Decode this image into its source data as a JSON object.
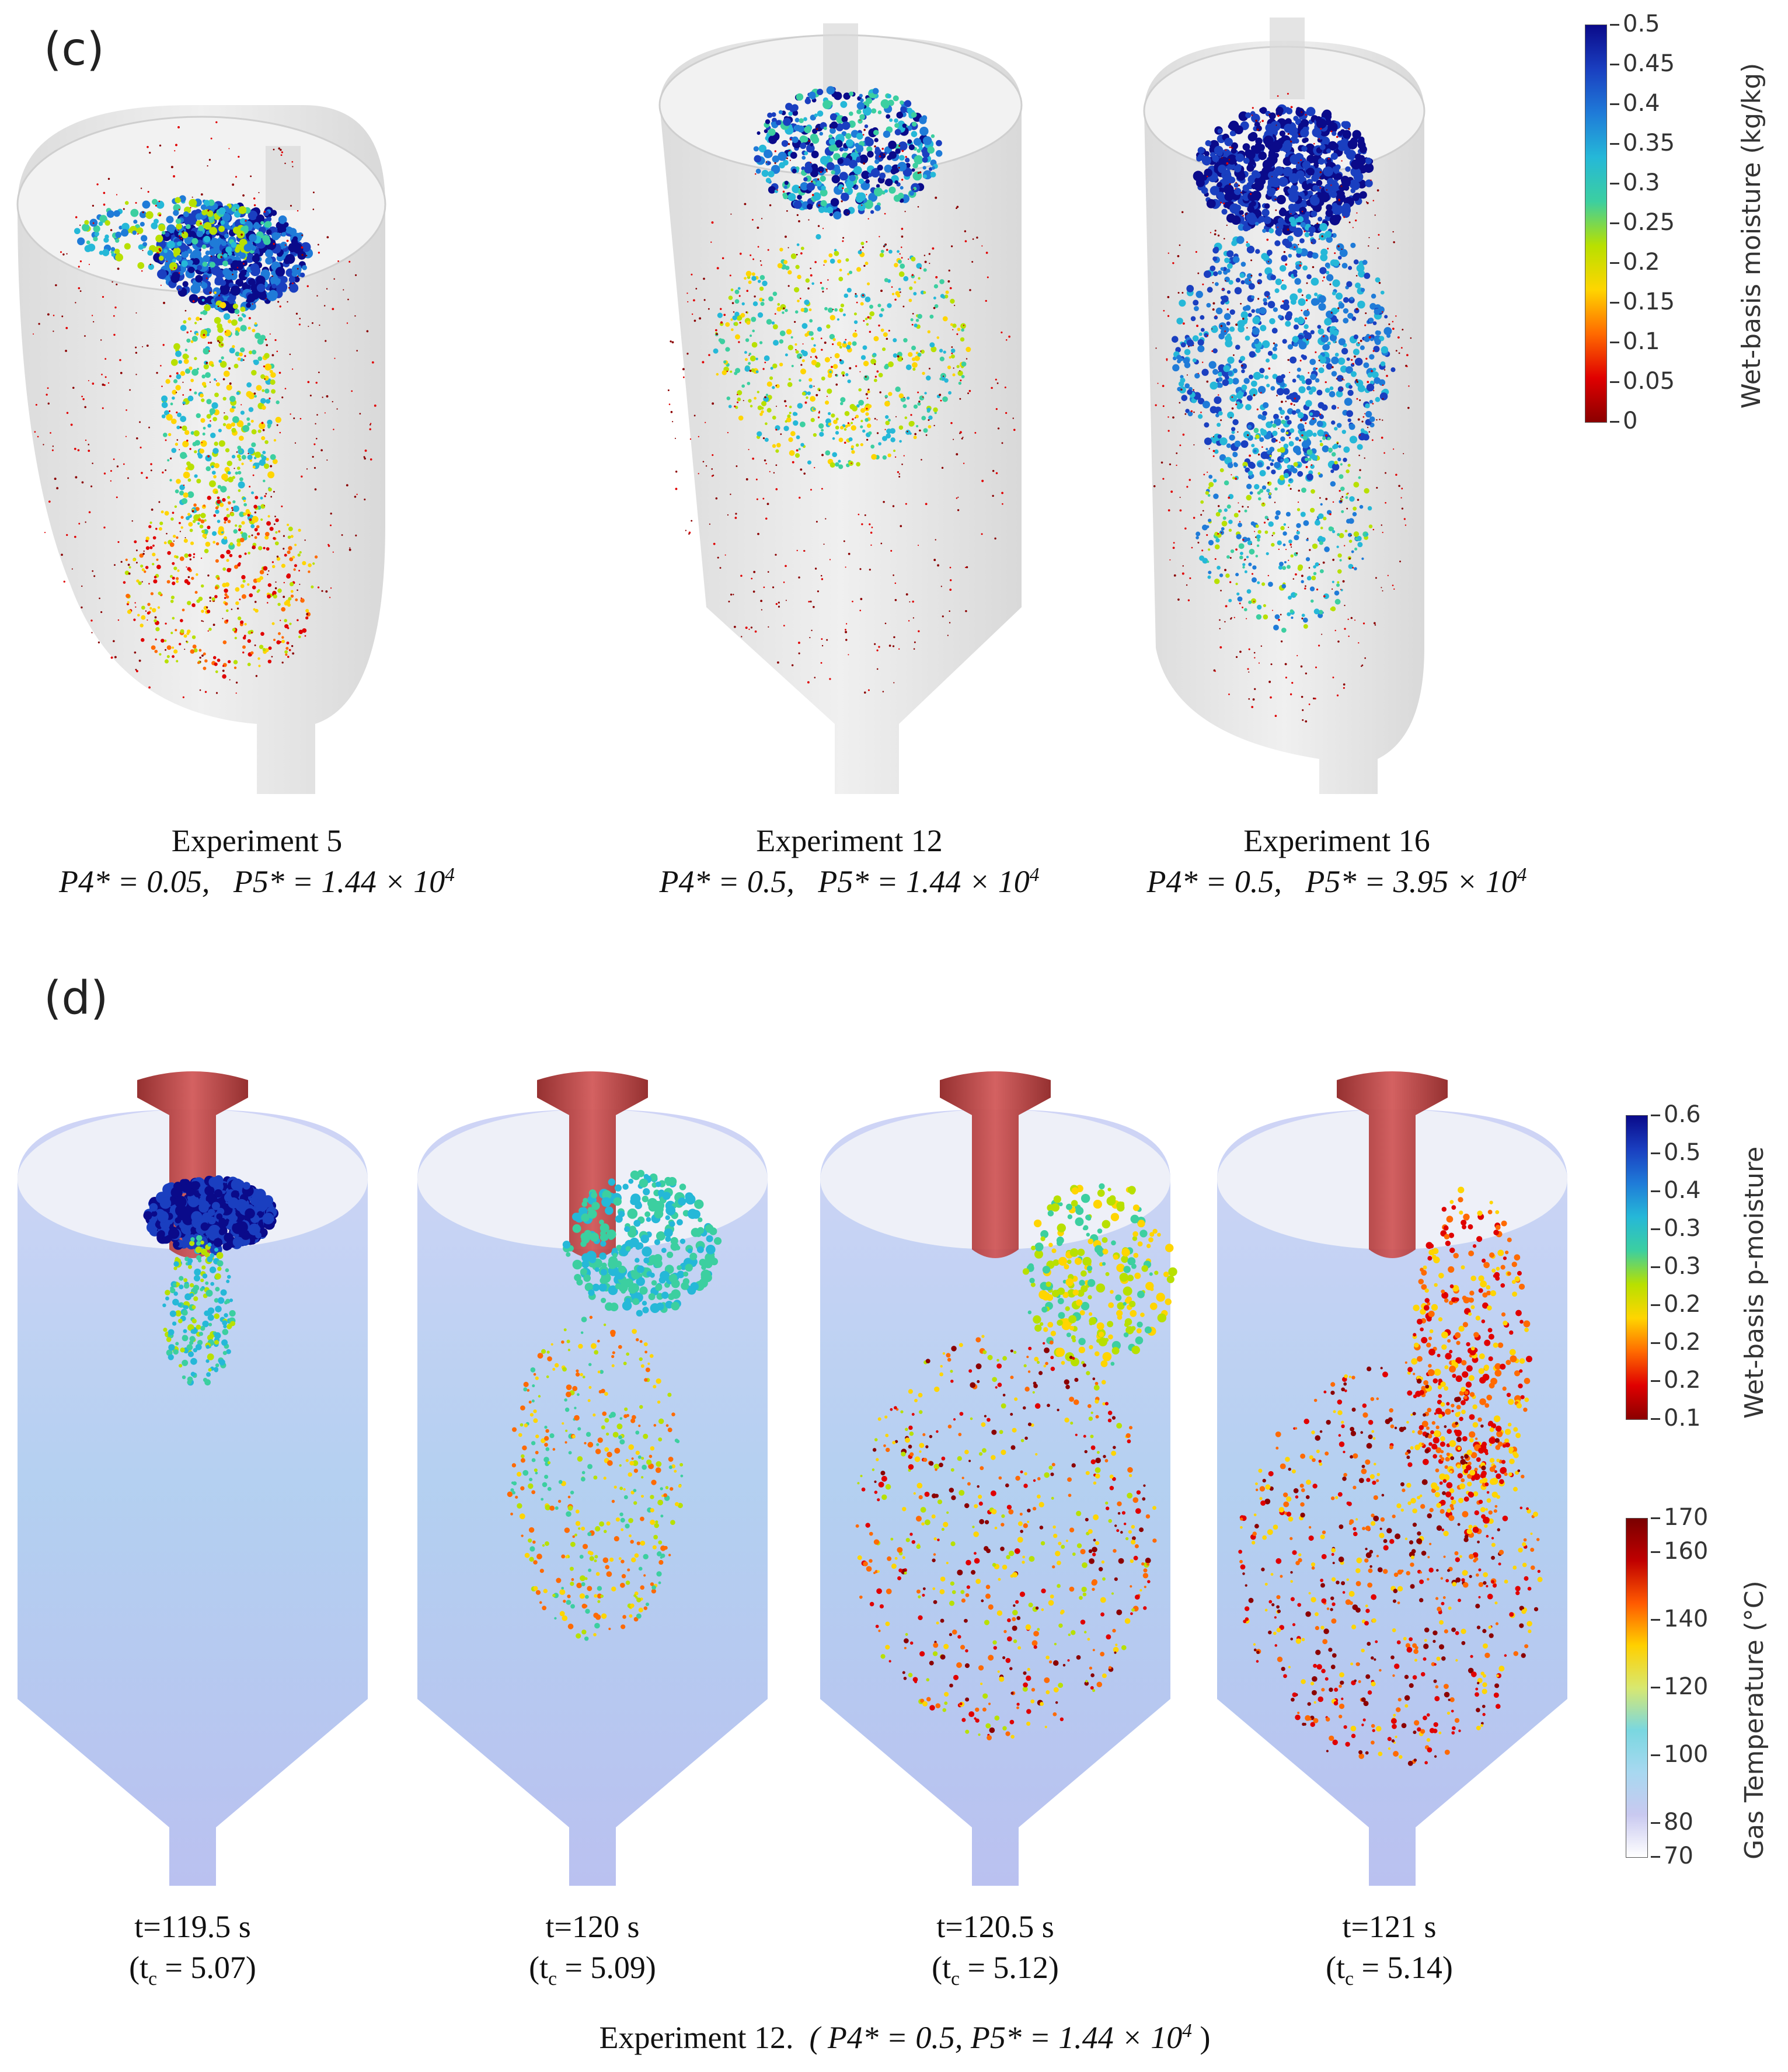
{
  "panel_c": {
    "label": "(c)",
    "colorbar": {
      "title": "Wet-basis moisture (kg/kg)",
      "ticks": [
        "0.5",
        "0.45",
        "0.4",
        "0.35",
        "0.3",
        "0.25",
        "0.2",
        "0.15",
        "0.1",
        "0.05",
        "0"
      ]
    },
    "experiments": [
      {
        "name": "Experiment 5",
        "p4": "P4* = 0.05,",
        "p5": "P5* = 1.44 × 10",
        "p5_exp": "4"
      },
      {
        "name": "Experiment 12",
        "p4": "P4* = 0.5,",
        "p5": "P5* = 1.44 × 10",
        "p5_exp": "4"
      },
      {
        "name": "Experiment 16",
        "p4": "P4* = 0.5,",
        "p5": "P5* = 3.95 × 10",
        "p5_exp": "4"
      }
    ]
  },
  "panel_d": {
    "label": "(d)",
    "colorbar_moisture": {
      "title": "Wet-basis p-moisture",
      "ticks": [
        "0.6",
        "0.5",
        "0.4",
        "0.3",
        "0.3",
        "0.2",
        "0.2",
        "0.2",
        "0.1"
      ]
    },
    "colorbar_temp": {
      "title": "Gas Temperature (°C)",
      "ticks": [
        "170",
        "160",
        "140",
        "120",
        "100",
        "80",
        "70"
      ]
    },
    "snapshots": [
      {
        "time": "t=119.5 s",
        "tc_prefix": "(t",
        "tc_sub": "c",
        "tc_value": " = 5.07)"
      },
      {
        "time": "t=120 s",
        "tc_prefix": "(t",
        "tc_sub": "c",
        "tc_value": " = 5.09)"
      },
      {
        "time": "t=120.5 s",
        "tc_prefix": "(t",
        "tc_sub": "c",
        "tc_value": " = 5.12)"
      },
      {
        "time": "t=121 s",
        "tc_prefix": "(t",
        "tc_sub": "c",
        "tc_value": " = 5.14)"
      }
    ],
    "caption_prefix": "Experiment 12.",
    "caption_math": "( P4* = 0.5,    P5* = 1.44 × 10",
    "caption_exp": "4",
    "caption_close": " )"
  },
  "colors": {
    "moisture_scale": [
      "#8b0000",
      "#e00000",
      "#ff6a00",
      "#ffd500",
      "#b8e000",
      "#3ccfa0",
      "#25b8d8",
      "#1f7bd8",
      "#1a3fc0",
      "#0a0a8a"
    ],
    "temp_scale": [
      "#ffffff",
      "#c9c9f0",
      "#a8d8f0",
      "#7ad7e0",
      "#d8e870",
      "#ffd000",
      "#ff5a00",
      "#c00000",
      "#7a0000"
    ],
    "vessel_fill": "#e4e4e4",
    "gas_fill": "#a9b4ee",
    "nozzle": "#a82525"
  }
}
